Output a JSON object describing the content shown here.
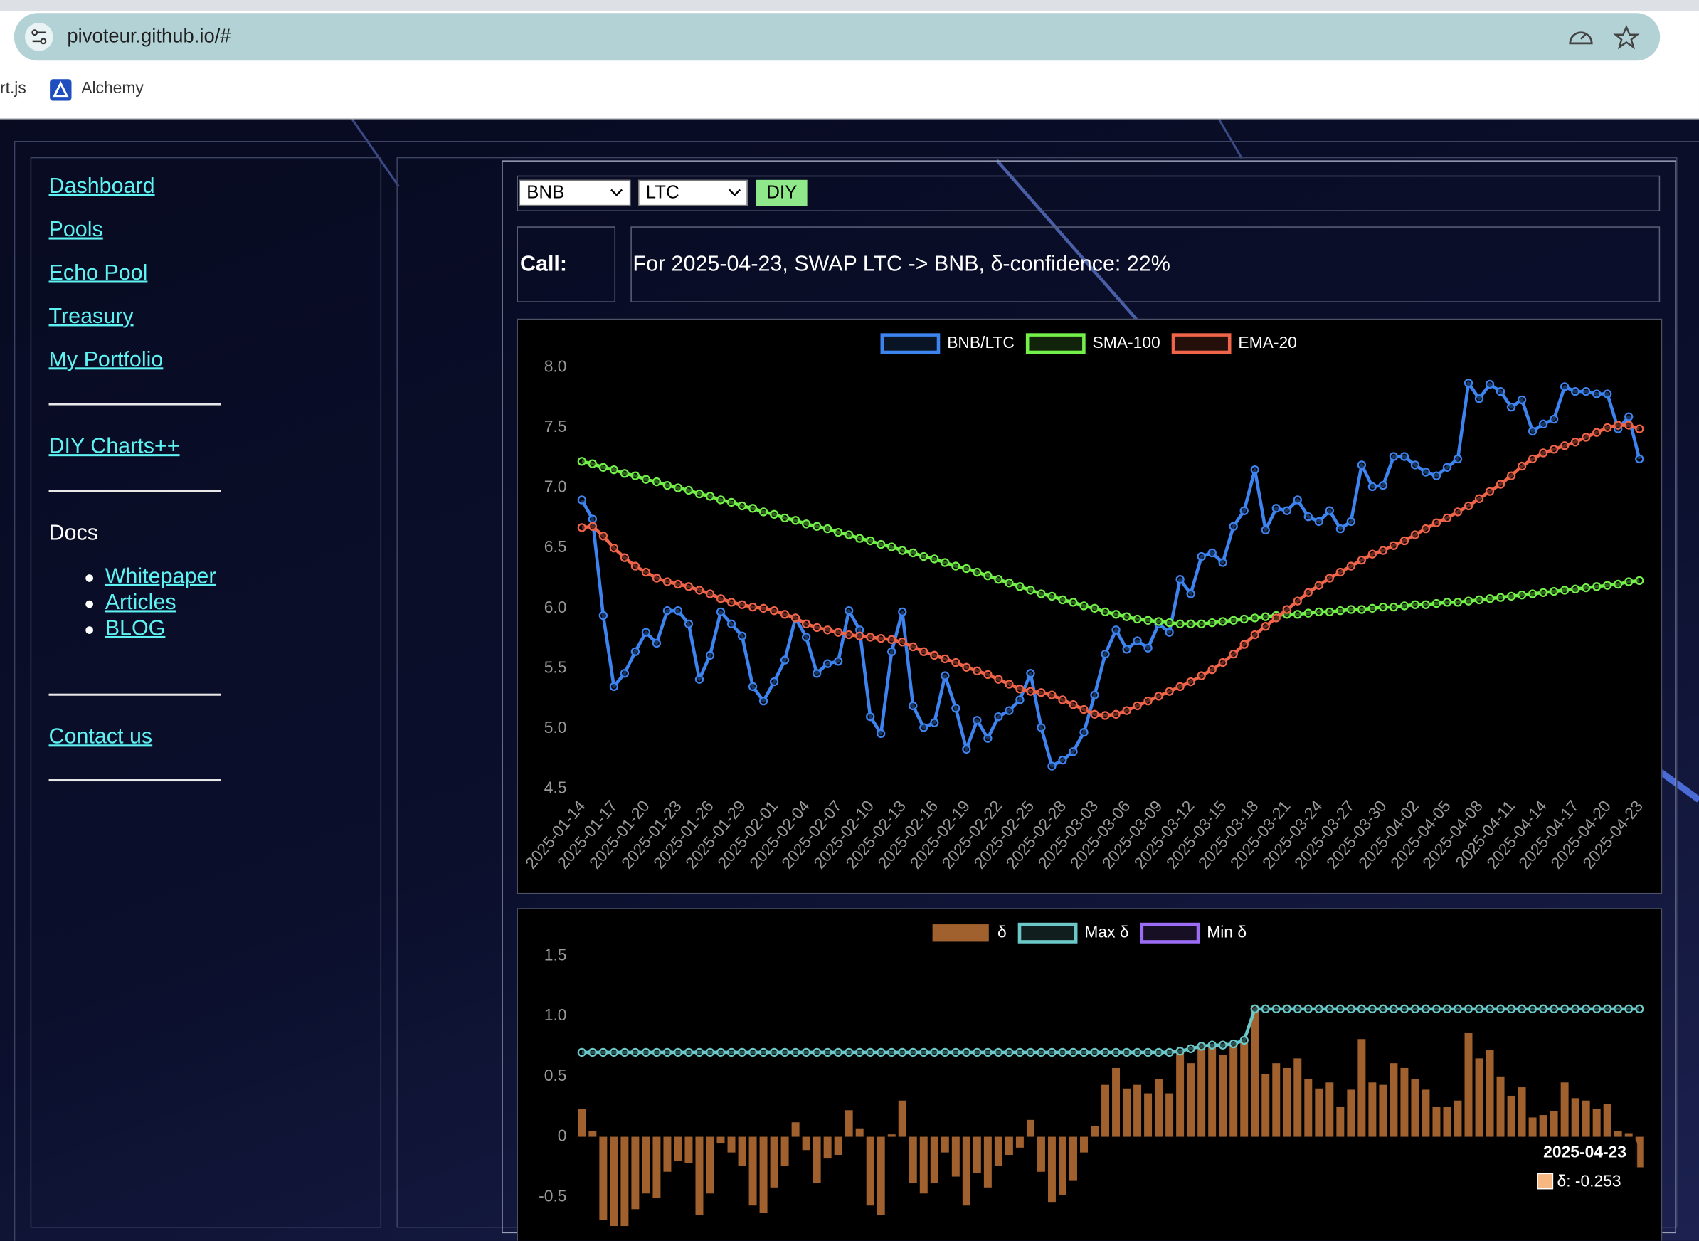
{
  "browser": {
    "url": "pivoteur.github.io/#",
    "bookmarks": [
      "rt.js",
      "Alchemy"
    ]
  },
  "nav": {
    "links": [
      "Dashboard",
      "Pools",
      "Echo Pool",
      "Treasury",
      "My Portfolio"
    ],
    "diy": "DIY Charts++",
    "docs_heading": "Docs",
    "docs": [
      "Whitepaper",
      "Articles",
      "BLOG"
    ],
    "contact": "Contact us"
  },
  "controls": {
    "base": "BNB",
    "quote": "LTC",
    "button": "DIY"
  },
  "call": {
    "label": "Call:",
    "text": "For 2025-04-23, SWAP LTC -> BNB, δ-confidence: 22%"
  },
  "chart_data": [
    {
      "type": "line",
      "legend": "top",
      "grid": false,
      "categories": [
        "2025-01-14",
        null,
        null,
        "2025-01-17",
        null,
        null,
        "2025-01-20",
        null,
        null,
        "2025-01-23",
        null,
        null,
        "2025-01-26",
        null,
        null,
        "2025-01-29",
        null,
        null,
        "2025-02-01",
        null,
        null,
        "2025-02-04",
        null,
        null,
        "2025-02-07",
        null,
        null,
        "2025-02-10",
        null,
        null,
        "2025-02-13",
        null,
        null,
        "2025-02-16",
        null,
        null,
        "2025-02-19",
        null,
        null,
        "2025-02-22",
        null,
        null,
        "2025-02-25",
        null,
        null,
        "2025-02-28",
        null,
        null,
        "2025-03-03",
        null,
        null,
        "2025-03-06",
        null,
        null,
        "2025-03-09",
        null,
        null,
        "2025-03-12",
        null,
        null,
        "2025-03-15",
        null,
        null,
        "2025-03-18",
        null,
        null,
        "2025-03-21",
        null,
        null,
        "2025-03-24",
        null,
        null,
        "2025-03-27",
        null,
        null,
        "2025-03-30",
        null,
        null,
        "2025-04-02",
        null,
        null,
        "2025-04-05",
        null,
        null,
        "2025-04-08",
        null,
        null,
        "2025-04-11",
        null,
        null,
        "2025-04-14",
        null,
        null,
        "2025-04-17",
        null,
        null,
        "2025-04-20",
        null,
        null,
        "2025-04-23"
      ],
      "ylim": [
        4.5,
        8.0
      ],
      "yticks": [
        4.5,
        {
          "value": 5,
          "label": "5.0"
        },
        5.5,
        {
          "value": 6,
          "label": "6.0"
        },
        6.5,
        {
          "value": 7,
          "label": "7.0"
        },
        7.5,
        {
          "value": 8,
          "label": "8.0"
        }
      ],
      "series": [
        {
          "name": "BNB/LTC",
          "color": "#3d84f0",
          "values": [
            6.9,
            6.74,
            5.94,
            5.35,
            5.46,
            5.64,
            5.8,
            5.71,
            5.98,
            5.98,
            5.87,
            5.41,
            5.61,
            5.97,
            5.87,
            5.77,
            5.35,
            5.23,
            5.39,
            5.57,
            5.92,
            5.76,
            5.46,
            5.54,
            5.56,
            5.98,
            5.82,
            5.1,
            4.96,
            5.64,
            5.97,
            5.19,
            5.01,
            5.05,
            5.44,
            5.17,
            4.83,
            5.07,
            4.92,
            5.1,
            5.15,
            5.24,
            5.46,
            5.01,
            4.69,
            4.74,
            4.81,
            4.97,
            5.28,
            5.62,
            5.82,
            5.66,
            5.73,
            5.67,
            5.87,
            5.8,
            6.24,
            6.12,
            6.43,
            6.46,
            6.38,
            6.68,
            6.81,
            7.15,
            6.65,
            6.83,
            6.81,
            6.9,
            6.76,
            6.72,
            6.81,
            6.66,
            6.72,
            7.19,
            7.01,
            7.02,
            7.26,
            7.26,
            7.19,
            7.13,
            7.1,
            7.17,
            7.24,
            7.87,
            7.74,
            7.86,
            7.8,
            7.67,
            7.73,
            7.47,
            7.53,
            7.57,
            7.84,
            7.8,
            7.8,
            7.78,
            7.78,
            7.49,
            7.59,
            7.24
          ]
        },
        {
          "name": "SMA-100",
          "color": "#74f04a",
          "values": [
            7.22,
            7.2,
            7.17,
            7.15,
            7.12,
            7.1,
            7.07,
            7.05,
            7.02,
            7.0,
            6.98,
            6.95,
            6.93,
            6.9,
            6.88,
            6.85,
            6.83,
            6.8,
            6.78,
            6.75,
            6.73,
            6.7,
            6.68,
            6.66,
            6.63,
            6.61,
            6.58,
            6.56,
            6.53,
            6.51,
            6.48,
            6.46,
            6.43,
            6.41,
            6.38,
            6.35,
            6.33,
            6.3,
            6.27,
            6.24,
            6.21,
            6.18,
            6.15,
            6.12,
            6.1,
            6.07,
            6.05,
            6.02,
            6.0,
            5.97,
            5.95,
            5.93,
            5.91,
            5.9,
            5.89,
            5.88,
            5.87,
            5.87,
            5.87,
            5.88,
            5.89,
            5.9,
            5.91,
            5.92,
            5.93,
            5.94,
            5.95,
            5.95,
            5.96,
            5.97,
            5.97,
            5.98,
            5.99,
            5.99,
            6.0,
            6.01,
            6.01,
            6.02,
            6.03,
            6.03,
            6.04,
            6.05,
            6.05,
            6.06,
            6.07,
            6.08,
            6.09,
            6.1,
            6.11,
            6.12,
            6.13,
            6.14,
            6.15,
            6.16,
            6.17,
            6.18,
            6.19,
            6.2,
            6.22,
            6.23
          ]
        },
        {
          "name": "EMA-20",
          "color": "#f0654a",
          "values": [
            6.67,
            6.68,
            6.6,
            6.5,
            6.42,
            6.35,
            6.3,
            6.25,
            6.22,
            6.2,
            6.18,
            6.15,
            6.12,
            6.08,
            6.05,
            6.03,
            6.01,
            6.0,
            5.98,
            5.95,
            5.92,
            5.87,
            5.84,
            5.82,
            5.8,
            5.78,
            5.77,
            5.76,
            5.75,
            5.74,
            5.72,
            5.68,
            5.64,
            5.61,
            5.58,
            5.55,
            5.51,
            5.48,
            5.45,
            5.41,
            5.37,
            5.33,
            5.31,
            5.3,
            5.28,
            5.24,
            5.2,
            5.16,
            5.12,
            5.11,
            5.12,
            5.15,
            5.19,
            5.23,
            5.27,
            5.31,
            5.35,
            5.39,
            5.44,
            5.49,
            5.55,
            5.62,
            5.7,
            5.78,
            5.85,
            5.92,
            5.99,
            6.06,
            6.13,
            6.19,
            6.25,
            6.3,
            6.35,
            6.4,
            6.45,
            6.48,
            6.52,
            6.56,
            6.61,
            6.66,
            6.71,
            6.75,
            6.8,
            6.85,
            6.91,
            6.97,
            7.03,
            7.1,
            7.18,
            7.24,
            7.29,
            7.32,
            7.35,
            7.38,
            7.42,
            7.46,
            7.5,
            7.52,
            7.52,
            7.49
          ]
        }
      ]
    },
    {
      "type": "bar",
      "legend": "top",
      "grid": false,
      "ylim": [
        -0.75,
        1.5
      ],
      "yticks": [
        -0.5,
        0,
        0.5,
        {
          "value": 1,
          "label": "1.0"
        },
        1.5
      ],
      "series": [
        {
          "name": "δ",
          "type": "bar",
          "color": "#a0612e",
          "values": [
            0.23,
            0.05,
            -0.69,
            -0.74,
            -0.74,
            -0.6,
            -0.47,
            -0.51,
            -0.29,
            -0.2,
            -0.22,
            -0.65,
            -0.47,
            -0.05,
            -0.13,
            -0.24,
            -0.57,
            -0.63,
            -0.42,
            -0.24,
            0.12,
            -0.11,
            -0.38,
            -0.18,
            -0.15,
            0.22,
            0.07,
            -0.57,
            -0.65,
            0.02,
            0.3,
            -0.38,
            -0.47,
            -0.38,
            -0.13,
            -0.33,
            -0.57,
            -0.3,
            -0.42,
            -0.24,
            -0.15,
            -0.09,
            0.14,
            -0.29,
            -0.54,
            -0.48,
            -0.36,
            -0.13,
            0.09,
            0.43,
            0.57,
            0.4,
            0.43,
            0.36,
            0.48,
            0.36,
            0.72,
            0.61,
            0.77,
            0.77,
            0.68,
            0.77,
            0.79,
            1.08,
            0.52,
            0.61,
            0.57,
            0.65,
            0.48,
            0.4,
            0.45,
            0.25,
            0.39,
            0.81,
            0.45,
            0.43,
            0.61,
            0.57,
            0.48,
            0.39,
            0.25,
            0.25,
            0.3,
            0.86,
            0.65,
            0.72,
            0.5,
            0.34,
            0.41,
            0.16,
            0.18,
            0.21,
            0.45,
            0.32,
            0.3,
            0.23,
            0.27,
            0.05,
            0.03,
            -0.253
          ]
        },
        {
          "name": "Max δ",
          "type": "line",
          "color": "#6cc8c8",
          "values": [
            0.7,
            0.7,
            0.7,
            0.7,
            0.7,
            0.7,
            0.7,
            0.7,
            0.7,
            0.7,
            0.7,
            0.7,
            0.7,
            0.7,
            0.7,
            0.7,
            0.7,
            0.7,
            0.7,
            0.7,
            0.7,
            0.7,
            0.7,
            0.7,
            0.7,
            0.7,
            0.7,
            0.7,
            0.7,
            0.7,
            0.7,
            0.7,
            0.7,
            0.7,
            0.7,
            0.7,
            0.7,
            0.7,
            0.7,
            0.7,
            0.7,
            0.7,
            0.7,
            0.7,
            0.7,
            0.7,
            0.7,
            0.7,
            0.7,
            0.7,
            0.7,
            0.7,
            0.7,
            0.7,
            0.7,
            0.7,
            0.71,
            0.73,
            0.75,
            0.76,
            0.76,
            0.77,
            0.8,
            1.06,
            1.06,
            1.06,
            1.06,
            1.06,
            1.06,
            1.06,
            1.06,
            1.06,
            1.06,
            1.06,
            1.06,
            1.06,
            1.06,
            1.06,
            1.06,
            1.06,
            1.06,
            1.06,
            1.06,
            1.06,
            1.06,
            1.06,
            1.06,
            1.06,
            1.06,
            1.06,
            1.06,
            1.06,
            1.06,
            1.06,
            1.06,
            1.06,
            1.06,
            1.06,
            1.06,
            1.06
          ]
        },
        {
          "name": "Min δ",
          "type": "line",
          "color": "#9b6cf5",
          "values": [
            null,
            null,
            null,
            null,
            null,
            null,
            null,
            null,
            null,
            null,
            null,
            null,
            null,
            null,
            null,
            null,
            null,
            null,
            null,
            null,
            null,
            null,
            null,
            null,
            null,
            null,
            null,
            null,
            null,
            null,
            null,
            null,
            null,
            null,
            null,
            null,
            null,
            null,
            null,
            null,
            null,
            null,
            null,
            null,
            null,
            null,
            null,
            null,
            null,
            null,
            null,
            null,
            null,
            null,
            null,
            null,
            null,
            null,
            null,
            null,
            null,
            null,
            null,
            null,
            null,
            null,
            null,
            null,
            null,
            null,
            null,
            null,
            null,
            null,
            null,
            null,
            null,
            null,
            null,
            null,
            null,
            null,
            null,
            null,
            null,
            null,
            null,
            null,
            null,
            null,
            null,
            null,
            null,
            null,
            null,
            null,
            null,
            null,
            null,
            null
          ]
        }
      ],
      "tooltip": {
        "title": "2025-04-23",
        "label": "δ: -0.253",
        "color": "#f6b783"
      }
    }
  ]
}
